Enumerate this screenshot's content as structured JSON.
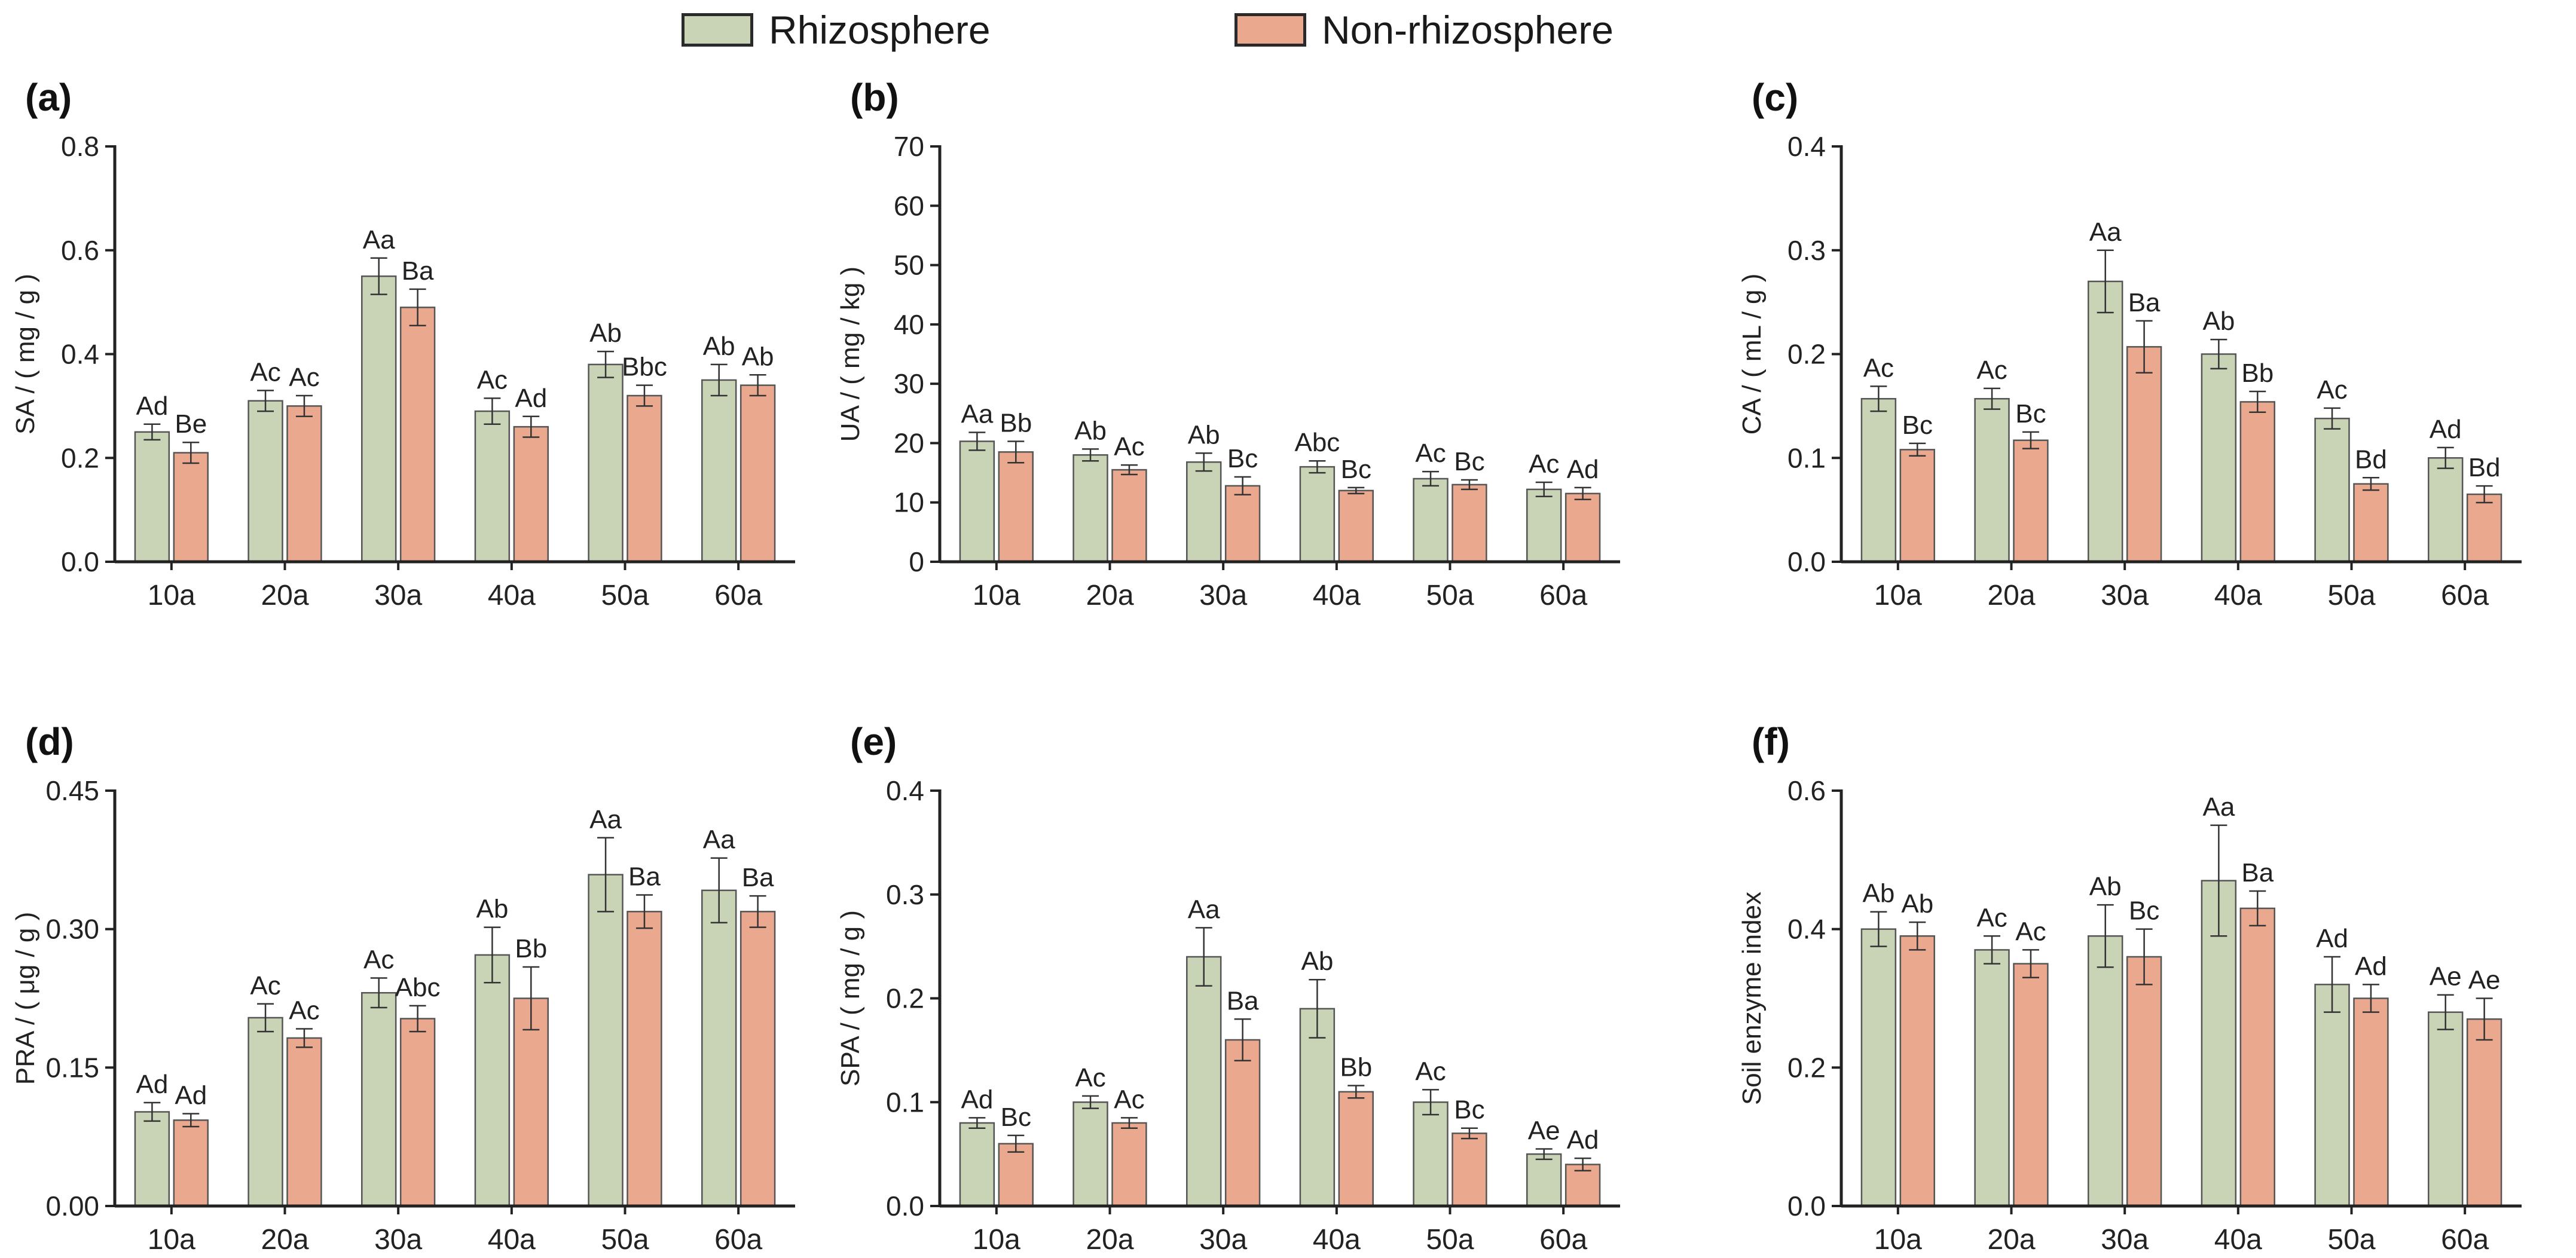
{
  "legend": {
    "rhizosphere": "Rhizosphere",
    "non_rhizosphere": "Non-rhizosphere"
  },
  "colors": {
    "rhizosphere": "#c9d3b6",
    "non_rhizosphere": "#eaa88e",
    "edge": "#555555",
    "axis": "#222222"
  },
  "chart_data": [
    {
      "type": "bar",
      "panel": "(a)",
      "ylabel": "SA / ( mg / g )",
      "categories": [
        "10a",
        "20a",
        "30a",
        "40a",
        "50a",
        "60a"
      ],
      "ylim": [
        0,
        0.8
      ],
      "yticks": [
        "0.0",
        "0.2",
        "0.4",
        "0.6",
        "0.8"
      ],
      "series": [
        {
          "name": "Rhizosphere",
          "values": [
            0.25,
            0.31,
            0.55,
            0.29,
            0.38,
            0.35
          ],
          "errors": [
            0.015,
            0.02,
            0.035,
            0.025,
            0.025,
            0.03
          ],
          "labels": [
            "Ad",
            "Ac",
            "Aa",
            "Ac",
            "Ab",
            "Ab"
          ]
        },
        {
          "name": "Non-rhizosphere",
          "values": [
            0.21,
            0.3,
            0.49,
            0.26,
            0.32,
            0.34
          ],
          "errors": [
            0.02,
            0.02,
            0.035,
            0.02,
            0.02,
            0.02
          ],
          "labels": [
            "Be",
            "Ac",
            "Ba",
            "Ad",
            "Bbc",
            "Ab"
          ]
        }
      ]
    },
    {
      "type": "bar",
      "panel": "(b)",
      "ylabel": "UA / ( mg / kg )",
      "categories": [
        "10a",
        "20a",
        "30a",
        "40a",
        "50a",
        "60a"
      ],
      "ylim": [
        0,
        70
      ],
      "yticks": [
        "0",
        "10",
        "20",
        "30",
        "40",
        "50",
        "60",
        "70"
      ],
      "series": [
        {
          "name": "Rhizosphere",
          "values": [
            20.3,
            18.0,
            16.8,
            16.0,
            14.0,
            12.2
          ],
          "errors": [
            1.5,
            1.0,
            1.5,
            1.0,
            1.2,
            1.2
          ],
          "labels": [
            "Aa",
            "Ab",
            "Ab",
            "Abc",
            "Ac",
            "Ac"
          ]
        },
        {
          "name": "Non-rhizosphere",
          "values": [
            18.5,
            15.5,
            12.8,
            12.0,
            13.0,
            11.5
          ],
          "errors": [
            1.8,
            0.8,
            1.5,
            0.5,
            0.8,
            1.0
          ],
          "labels": [
            "Bb",
            "Ac",
            "Bc",
            "Bc",
            "Bc",
            "Ad"
          ]
        }
      ]
    },
    {
      "type": "bar",
      "panel": "(c)",
      "ylabel": "CA / ( mL / g )",
      "categories": [
        "10a",
        "20a",
        "30a",
        "40a",
        "50a",
        "60a"
      ],
      "ylim": [
        0,
        0.4
      ],
      "yticks": [
        "0.0",
        "0.1",
        "0.2",
        "0.3",
        "0.4"
      ],
      "series": [
        {
          "name": "Rhizosphere",
          "values": [
            0.157,
            0.157,
            0.27,
            0.2,
            0.138,
            0.1
          ],
          "errors": [
            0.012,
            0.01,
            0.03,
            0.014,
            0.01,
            0.01
          ],
          "labels": [
            "Ac",
            "Ac",
            "Aa",
            "Ab",
            "Ac",
            "Ad"
          ]
        },
        {
          "name": "Non-rhizosphere",
          "values": [
            0.108,
            0.117,
            0.207,
            0.154,
            0.075,
            0.065
          ],
          "errors": [
            0.006,
            0.008,
            0.025,
            0.01,
            0.006,
            0.008
          ],
          "labels": [
            "Bc",
            "Bc",
            "Ba",
            "Bb",
            "Bd",
            "Bd"
          ]
        }
      ]
    },
    {
      "type": "bar",
      "panel": "(d)",
      "ylabel": "PRA / ( μg / g )",
      "categories": [
        "10a",
        "20a",
        "30a",
        "40a",
        "50a",
        "60a"
      ],
      "ylim": [
        0,
        0.45
      ],
      "yticks": [
        "0.00",
        "0.15",
        "0.30",
        "0.45"
      ],
      "series": [
        {
          "name": "Rhizosphere",
          "values": [
            0.102,
            0.204,
            0.231,
            0.272,
            0.359,
            0.342
          ],
          "errors": [
            0.01,
            0.015,
            0.016,
            0.03,
            0.04,
            0.035
          ],
          "labels": [
            "Ad",
            "Ac",
            "Ac",
            "Ab",
            "Aa",
            "Aa"
          ]
        },
        {
          "name": "Non-rhizosphere",
          "values": [
            0.093,
            0.182,
            0.203,
            0.225,
            0.319,
            0.319
          ],
          "errors": [
            0.007,
            0.01,
            0.014,
            0.034,
            0.018,
            0.017
          ],
          "labels": [
            "Ad",
            "Ac",
            "Abc",
            "Bb",
            "Ba",
            "Ba"
          ]
        }
      ]
    },
    {
      "type": "bar",
      "panel": "(e)",
      "ylabel": "SPA / ( mg / g )",
      "categories": [
        "10a",
        "20a",
        "30a",
        "40a",
        "50a",
        "60a"
      ],
      "ylim": [
        0,
        0.4
      ],
      "yticks": [
        "0.0",
        "0.1",
        "0.2",
        "0.3",
        "0.4"
      ],
      "series": [
        {
          "name": "Rhizosphere",
          "values": [
            0.08,
            0.1,
            0.24,
            0.19,
            0.1,
            0.05
          ],
          "errors": [
            0.005,
            0.006,
            0.028,
            0.028,
            0.012,
            0.005
          ],
          "labels": [
            "Ad",
            "Ac",
            "Aa",
            "Ab",
            "Ac",
            "Ae"
          ]
        },
        {
          "name": "Non-rhizosphere",
          "values": [
            0.06,
            0.08,
            0.16,
            0.11,
            0.07,
            0.04
          ],
          "errors": [
            0.008,
            0.005,
            0.02,
            0.006,
            0.005,
            0.006
          ],
          "labels": [
            "Bc",
            "Ac",
            "Ba",
            "Bb",
            "Bc",
            "Ad"
          ]
        }
      ]
    },
    {
      "type": "bar",
      "panel": "(f)",
      "ylabel": "Soil enzyme index",
      "categories": [
        "10a",
        "20a",
        "30a",
        "40a",
        "50a",
        "60a"
      ],
      "ylim": [
        0,
        0.6
      ],
      "yticks": [
        "0.0",
        "0.2",
        "0.4",
        "0.6"
      ],
      "series": [
        {
          "name": "Rhizosphere",
          "values": [
            0.4,
            0.37,
            0.39,
            0.47,
            0.32,
            0.28
          ],
          "errors": [
            0.025,
            0.02,
            0.045,
            0.08,
            0.04,
            0.025
          ],
          "labels": [
            "Ab",
            "Ac",
            "Ab",
            "Aa",
            "Ad",
            "Ae"
          ]
        },
        {
          "name": "Non-rhizosphere",
          "values": [
            0.39,
            0.35,
            0.36,
            0.43,
            0.3,
            0.27
          ],
          "errors": [
            0.02,
            0.02,
            0.04,
            0.025,
            0.02,
            0.03
          ],
          "labels": [
            "Ab",
            "Ac",
            "Bc",
            "Ba",
            "Ad",
            "Ae"
          ]
        }
      ]
    }
  ]
}
